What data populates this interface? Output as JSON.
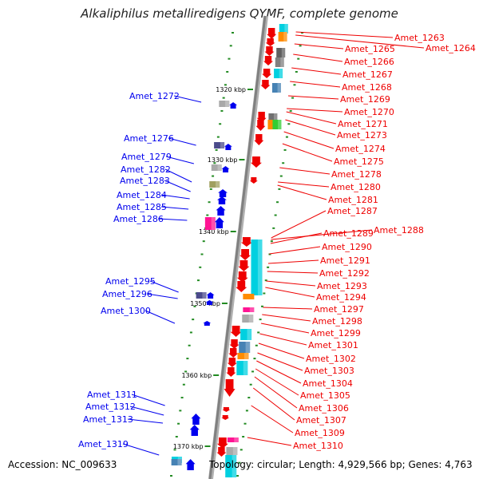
{
  "title": "Alkaliphilus metalliredigens QYMF, complete genome",
  "accession": "Accession: NC_009633",
  "summary": "Topology: circular; Length: 4,929,566 bp; Genes: 4,763",
  "colors": {
    "forward": "#0000ee",
    "reverse": "#ee0000",
    "backbone": "#808080",
    "tick": "#228b22"
  },
  "kbp_labels": [
    "1320 kbp",
    "1330 kbp",
    "1340 kbp",
    "1350 kbp",
    "1360 kbp",
    "1370 kbp"
  ],
  "left_genes": [
    "Amet_1272",
    "Amet_1276",
    "Amet_1279",
    "Amet_1282",
    "Amet_1283",
    "Amet_1284",
    "Amet_1285",
    "Amet_1286",
    "Amet_1295",
    "Amet_1296",
    "Amet_1300",
    "Amet_1311",
    "Amet_1312",
    "Amet_1313",
    "Amet_1319"
  ],
  "right_genes": [
    "Amet_1263",
    "Amet_1264",
    "Amet_1265",
    "Amet_1266",
    "Amet_1267",
    "Amet_1268",
    "Amet_1269",
    "Amet_1270",
    "Amet_1271",
    "Amet_1273",
    "Amet_1274",
    "Amet_1275",
    "Amet_1278",
    "Amet_1280",
    "Amet_1281",
    "Amet_1287",
    "Amet_1288",
    "Amet_1289",
    "Amet_1290",
    "Amet_1291",
    "Amet_1292",
    "Amet_1293",
    "Amet_1294",
    "Amet_1297",
    "Amet_1298",
    "Amet_1299",
    "Amet_1301",
    "Amet_1302",
    "Amet_1303",
    "Amet_1304",
    "Amet_1305",
    "Amet_1306",
    "Amet_1307",
    "Amet_1309",
    "Amet_1310"
  ]
}
